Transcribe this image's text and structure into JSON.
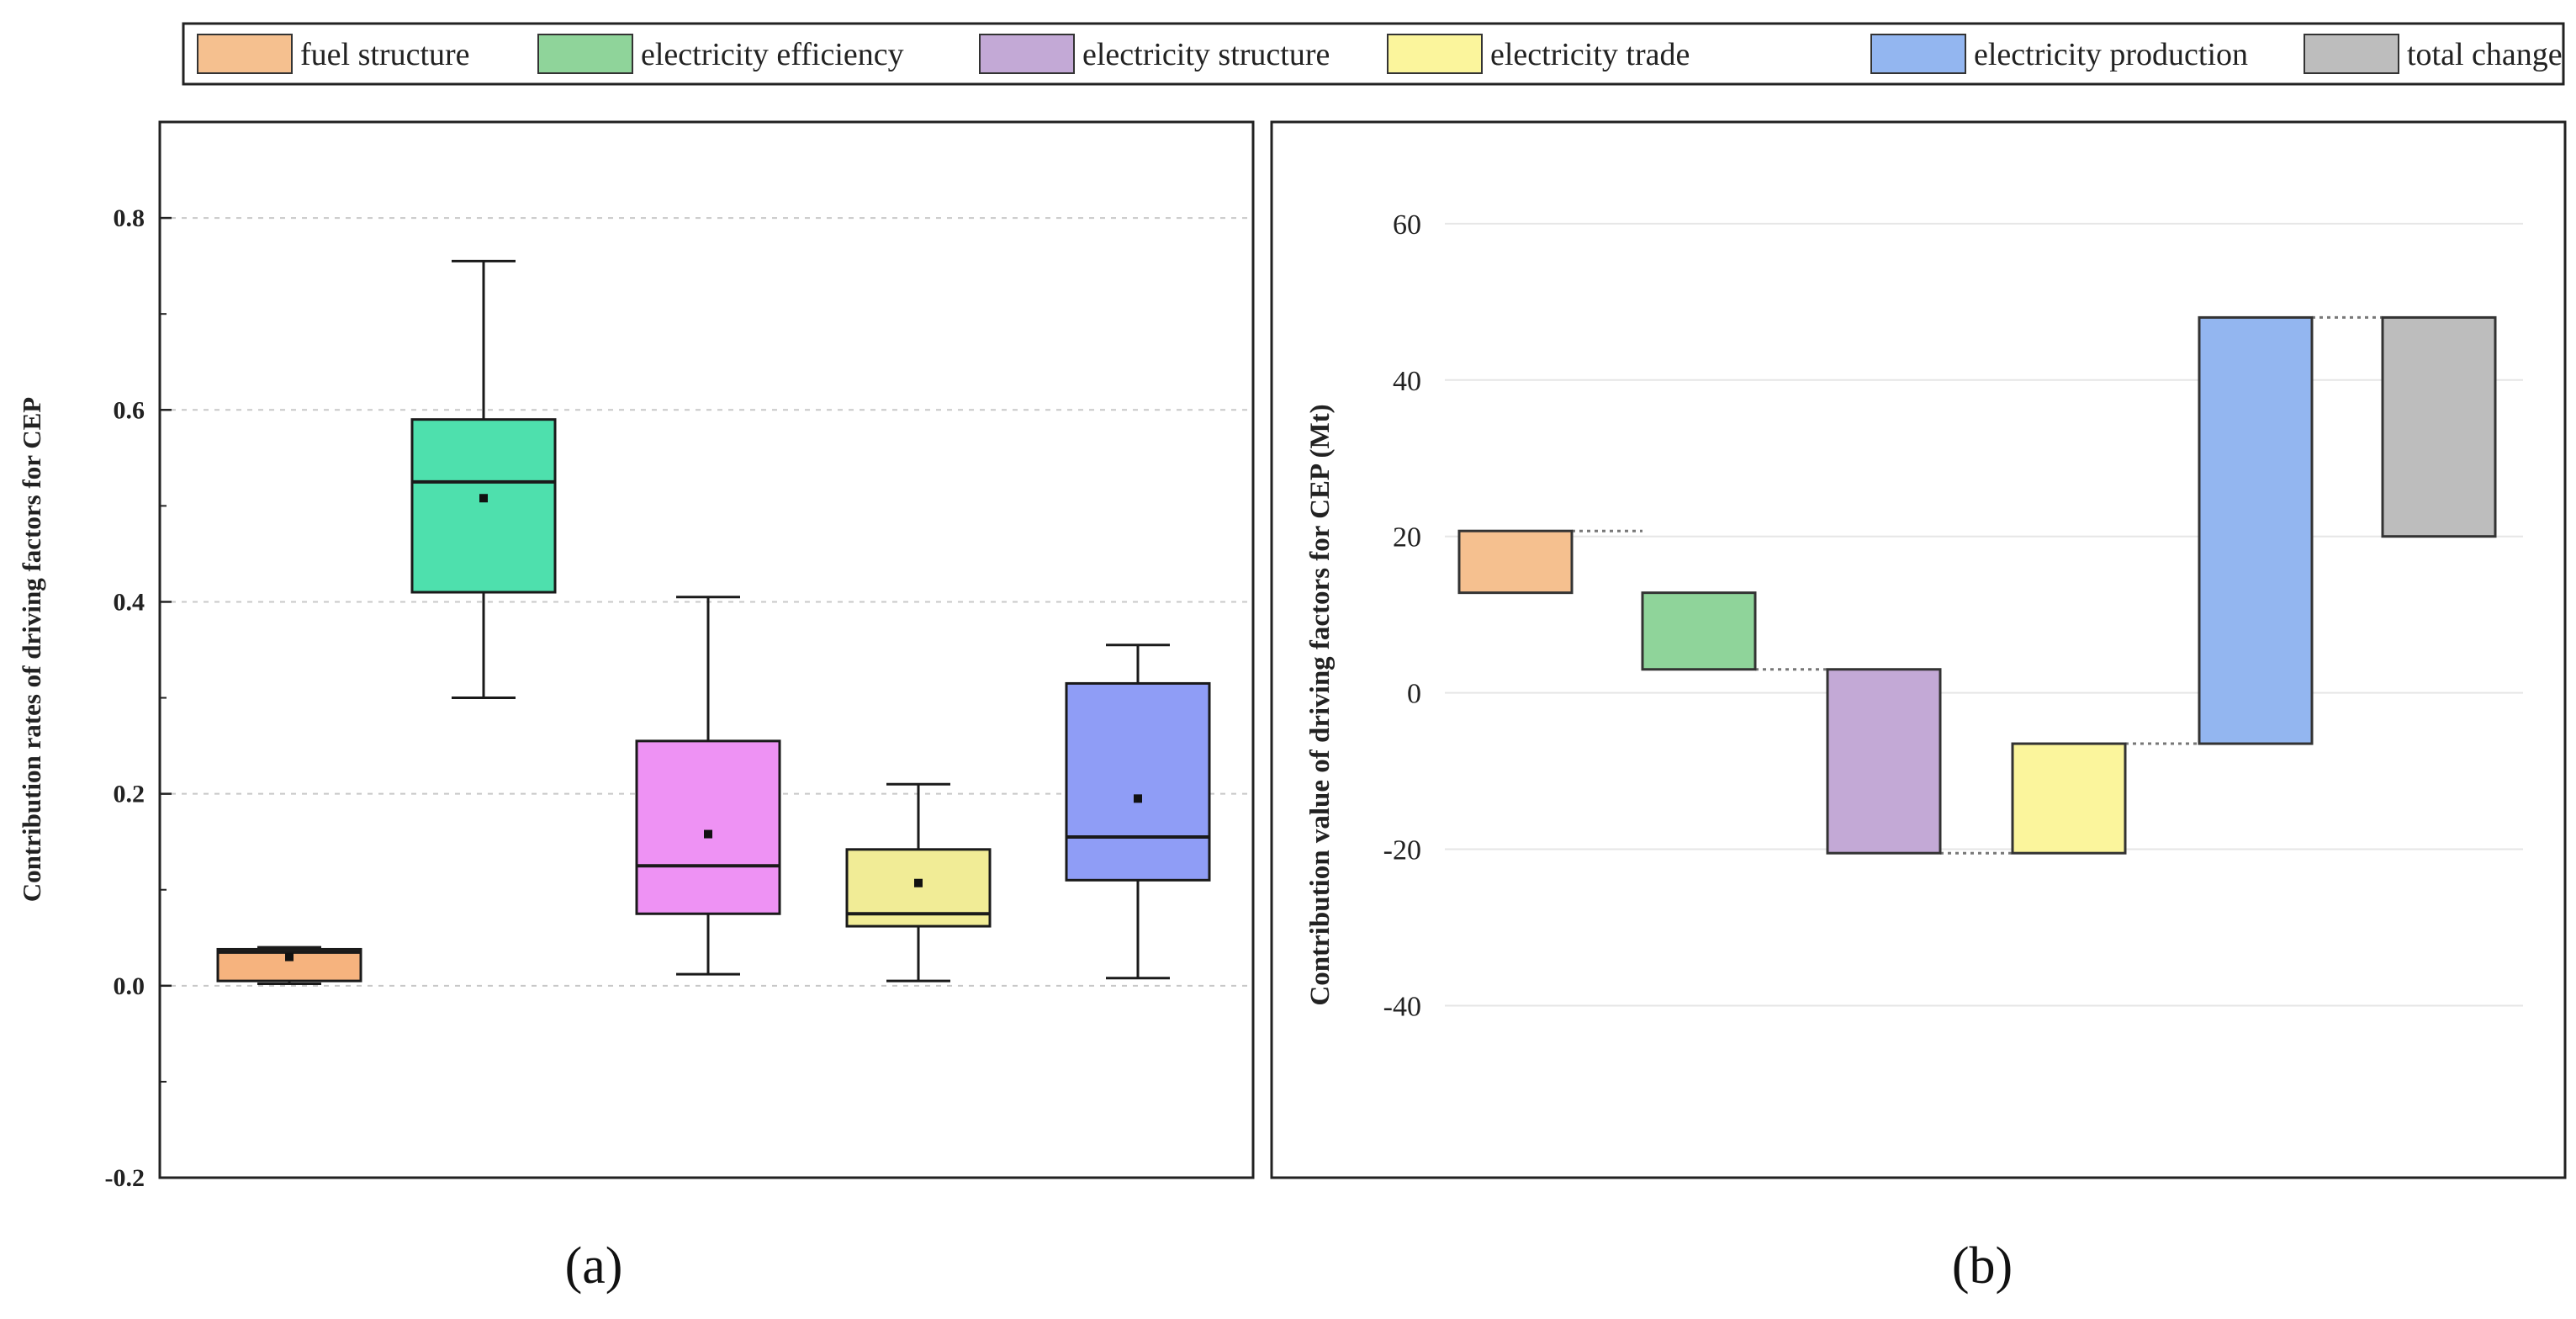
{
  "colors": {
    "fuel_structure": "#f5c08f",
    "electricity_efficiency": "#8fd49a",
    "electricity_structure": "#c3a9d6",
    "electricity_trade": "#fbf59c",
    "electricity_production": "#93b6f0",
    "total_change": "#bdbdbd",
    "box_fuel_structure": "#f6b37e",
    "box_electricity_efficiency": "#4ee0ad",
    "box_electricity_structure": "#ee92f4",
    "box_electricity_trade": "#f1ec96",
    "box_electricity_production": "#8f9df6",
    "frame": "#222222",
    "grid": "#c8c8c8"
  },
  "legend": {
    "items": [
      {
        "key": "fuel_structure",
        "label": "fuel structure"
      },
      {
        "key": "electricity_efficiency",
        "label": "electricity efficiency"
      },
      {
        "key": "electricity_structure",
        "label": "electricity structure"
      },
      {
        "key": "electricity_trade",
        "label": "electricity trade"
      },
      {
        "key": "electricity_production",
        "label": "electricity production"
      },
      {
        "key": "total_change",
        "label": "total change"
      }
    ]
  },
  "panel_a_label": "(a)",
  "panel_b_label": "(b)",
  "chart_data": [
    {
      "type": "box",
      "panel": "(a)",
      "ylabel": "Contribution rates of driving factors for CEP",
      "ylim": [
        -0.2,
        0.9
      ],
      "yticks": [
        -0.2,
        0.0,
        0.2,
        0.4,
        0.6,
        0.8
      ],
      "ytick_labels": [
        "-0.2",
        "0.0",
        "0.2",
        "0.4",
        "0.6",
        "0.8"
      ],
      "grid": true,
      "series": [
        {
          "name": "fuel structure",
          "key": "fuel_structure",
          "min": 0.002,
          "q1": 0.005,
          "median": 0.035,
          "q3": 0.038,
          "max": 0.04,
          "mean": 0.03
        },
        {
          "name": "electricity efficiency",
          "key": "electricity_efficiency",
          "min": 0.3,
          "q1": 0.41,
          "median": 0.525,
          "q3": 0.59,
          "max": 0.755,
          "mean": 0.508
        },
        {
          "name": "electricity structure",
          "key": "electricity_structure",
          "min": 0.012,
          "q1": 0.075,
          "median": 0.125,
          "q3": 0.255,
          "max": 0.405,
          "mean": 0.158
        },
        {
          "name": "electricity trade",
          "key": "electricity_trade",
          "min": 0.005,
          "q1": 0.062,
          "median": 0.075,
          "q3": 0.142,
          "max": 0.21,
          "mean": 0.107
        },
        {
          "name": "electricity production",
          "key": "electricity_production",
          "min": 0.008,
          "q1": 0.11,
          "median": 0.155,
          "q3": 0.315,
          "max": 0.355,
          "mean": 0.195
        }
      ]
    },
    {
      "type": "waterfall",
      "panel": "(b)",
      "ylabel": "Contribution value of driving factors for CEP (Mt)",
      "ylim": [
        -62,
        73
      ],
      "yticks": [
        -40,
        -20,
        0,
        20,
        40,
        60
      ],
      "ytick_labels": [
        "-40",
        "-20",
        "0",
        "20",
        "40",
        "60"
      ],
      "grid": true,
      "series": [
        {
          "name": "fuel structure",
          "key": "fuel_structure",
          "start": 12.8,
          "end": 20.7
        },
        {
          "name": "electricity efficiency",
          "key": "electricity_efficiency",
          "start": 12.8,
          "end": 3.0
        },
        {
          "name": "electricity structure",
          "key": "electricity_structure",
          "start": 3.0,
          "end": -20.5
        },
        {
          "name": "electricity trade",
          "key": "electricity_trade",
          "start": -20.5,
          "end": -6.5
        },
        {
          "name": "electricity production",
          "key": "electricity_production",
          "start": -6.5,
          "end": 48.0
        },
        {
          "name": "total change",
          "key": "total_change",
          "start": 20.0,
          "end": 48.0
        }
      ]
    }
  ]
}
